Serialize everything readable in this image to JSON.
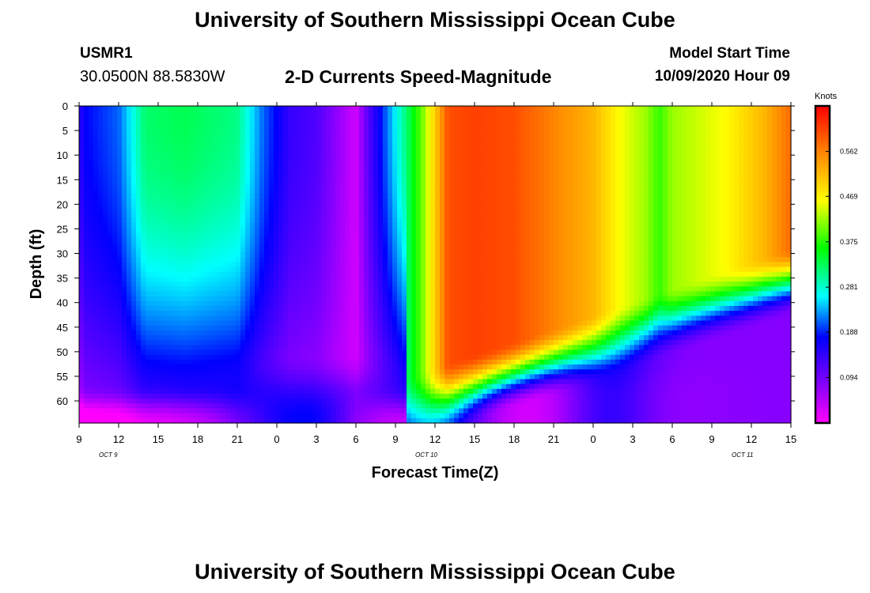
{
  "header": {
    "title": "University of Southern Mississippi Ocean Cube",
    "station": "USMR1",
    "coordinates": "30.0500N 88.5830W",
    "subtitle": "2-D Currents Speed-Magnitude",
    "model_start_label": "Model Start Time",
    "model_start_value": "10/09/2020 Hour 09"
  },
  "footer": {
    "title": "University of Southern Mississippi Ocean Cube"
  },
  "chart_data": {
    "type": "heatmap",
    "title": "2-D Currents Speed-Magnitude",
    "xlabel": "Forecast Time(Z)",
    "ylabel": "Depth (ft)",
    "x_tick_labels": [
      "9",
      "12",
      "15",
      "18",
      "21",
      "0",
      "3",
      "6",
      "9",
      "12",
      "15",
      "18",
      "21",
      "0",
      "3",
      "6",
      "9",
      "12",
      "15"
    ],
    "x_date_labels": [
      "OCT 9",
      "OCT 10",
      "OCT 11"
    ],
    "x_range_hours": [
      0,
      54
    ],
    "y_tick_labels": [
      "0",
      "5",
      "10",
      "15",
      "20",
      "25",
      "30",
      "35",
      "40",
      "45",
      "50",
      "55",
      "60"
    ],
    "y_range_ft": [
      0,
      64.5
    ],
    "colorbar": {
      "unit": "Knots",
      "ticks": [
        "0.562",
        "0.469",
        "0.375",
        "0.281",
        "0.188",
        "0.094"
      ],
      "range": [
        0,
        0.656
      ]
    },
    "grid": false,
    "surface_speed_profile": {
      "hours_from_start": [
        0,
        3,
        5,
        8,
        12,
        14,
        16,
        18,
        21,
        22,
        24,
        26,
        27,
        28,
        30,
        33,
        36,
        39,
        41,
        43,
        44,
        45,
        47,
        49,
        52,
        54
      ],
      "speed_knots": [
        0.17,
        0.21,
        0.32,
        0.33,
        0.31,
        0.21,
        0.14,
        0.12,
        0.03,
        0.12,
        0.26,
        0.4,
        0.5,
        0.6,
        0.61,
        0.6,
        0.56,
        0.52,
        0.46,
        0.42,
        0.38,
        0.42,
        0.44,
        0.46,
        0.52,
        0.58
      ]
    }
  }
}
